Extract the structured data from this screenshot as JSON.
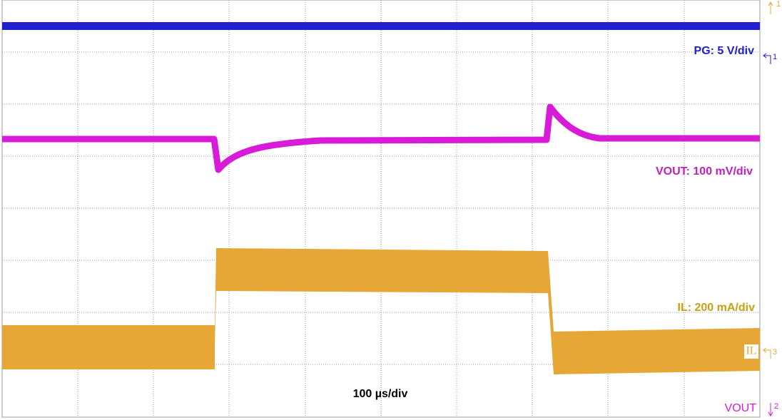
{
  "labels": {
    "pg": "PG: 5 V/div",
    "vout": "VOUT: 100 mV/div",
    "il": "IL: 200 mA/div",
    "time": "100 µs/div"
  },
  "markers": {
    "il_tag": "IL",
    "vout_tag": "VOUT",
    "ch1_top": "1",
    "ch1_ref": "1",
    "ch3_ref": "3",
    "ch2_ref": "2"
  }
}
